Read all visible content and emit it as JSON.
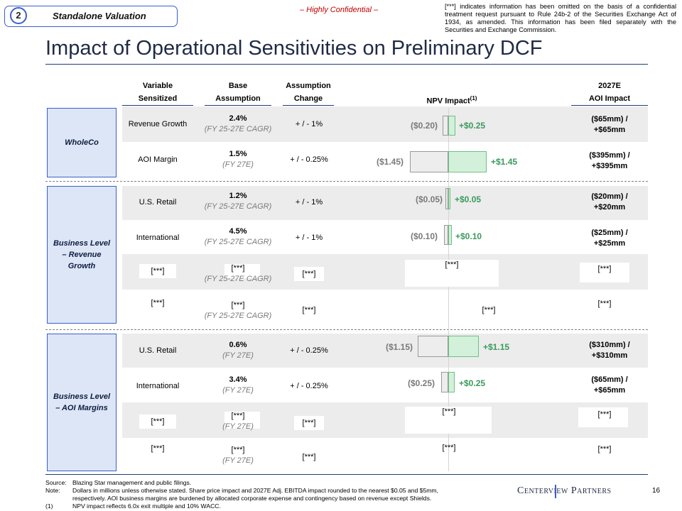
{
  "header": {
    "section_number": "2",
    "section_title": "Standalone Valuation",
    "confidential": "– Highly Confidential –",
    "disclaimer": "[***] indicates information has been omitted on the basis of a confidential treatment request pursuant to Rule 24b-2 of the Securities Exchange Act of 1934, as amended. This information has been filed separately with the Securities and Exchange Commission.",
    "title": "Impact of Operational Sensitivities on Preliminary DCF"
  },
  "columns": {
    "variable": [
      "Variable",
      "Sensitized"
    ],
    "base": [
      "Base",
      "Assumption"
    ],
    "change": [
      "Assumption",
      "Change"
    ],
    "npv": "NPV Impact",
    "npv_sup": "(1)",
    "aoi": [
      "2027E",
      "AOI Impact"
    ]
  },
  "groups": {
    "wholeco": "WholeCo",
    "revenue": "Business Level – Revenue Growth",
    "aoi": "Business Level – AOI Margins"
  },
  "rows": [
    {
      "variable": "Revenue Growth",
      "base": "2.4%",
      "base_sub": "(FY 25-27E CAGR)",
      "change": "+ / - 1%",
      "neg": "($0.20)",
      "pos": "+$0.25",
      "aoi1": "($65mm) /",
      "aoi2": "+$65mm"
    },
    {
      "variable": "AOI Margin",
      "base": "1.5%",
      "base_sub": "(FY 27E)",
      "change": "+ / - 0.25%",
      "neg": "($1.45)",
      "pos": "+$1.45",
      "aoi1": "($395mm) /",
      "aoi2": "+$395mm"
    },
    {
      "variable": "U.S. Retail",
      "base": "1.2%",
      "base_sub": "(FY 25-27E CAGR)",
      "change": "+ / - 1%",
      "neg": "($0.05)",
      "pos": "+$0.05",
      "aoi1": "($20mm) /",
      "aoi2": "+$20mm"
    },
    {
      "variable": "International",
      "base": "4.5%",
      "base_sub": "(FY 25-27E CAGR)",
      "change": "+ / - 1%",
      "neg": "($0.10)",
      "pos": "+$0.10",
      "aoi1": "($25mm) /",
      "aoi2": "+$25mm"
    },
    {
      "variable": "[***]",
      "base": "[***]",
      "base_sub": "(FY 25-27E CAGR)",
      "change": "[***]",
      "npv": "[***]",
      "aoi": "[***]"
    },
    {
      "variable": "[***]",
      "base": "[***]",
      "base_sub": "(FY 25-27E CAGR)",
      "change": "[***]",
      "npv": "[***]",
      "aoi": "[***]"
    },
    {
      "variable": "U.S. Retail",
      "base": "0.6%",
      "base_sub": "(FY 27E)",
      "change": "+ / - 0.25%",
      "neg": "($1.15)",
      "pos": "+$1.15",
      "aoi1": "($310mm) /",
      "aoi2": "+$310mm"
    },
    {
      "variable": "International",
      "base": "3.4%",
      "base_sub": "(FY 27E)",
      "change": "+ / - 0.25%",
      "neg": "($0.25)",
      "pos": "+$0.25",
      "aoi1": "($65mm) /",
      "aoi2": "+$65mm"
    },
    {
      "variable": "[***]",
      "base": "[***]",
      "base_sub": "(FY 27E)",
      "change": "[***]",
      "npv": "[***]",
      "aoi": "[***]"
    },
    {
      "variable": "[***]",
      "base": "[***]",
      "base_sub": "(FY 27E)",
      "change": "[***]",
      "npv": "[***]",
      "aoi": "[***]"
    }
  ],
  "footer": {
    "source_label": "Source:",
    "source": "Blazing Star management and public filings.",
    "note_label": "Note:",
    "note1": "Dollars in millions unless otherwise stated. Share price impact and 2027E Adj. EBITDA impact rounded to the nearest $0.05 and $5mm,",
    "note2": "respectively. AOI business margins are burdened by allocated corporate expense and contingency based on revenue except Shields.",
    "fn_label": "(1)",
    "fn": "NPV impact reflects 6.0x exit multiple and 10% WACC.",
    "logo": "Centerview Partners",
    "page": "16"
  }
}
